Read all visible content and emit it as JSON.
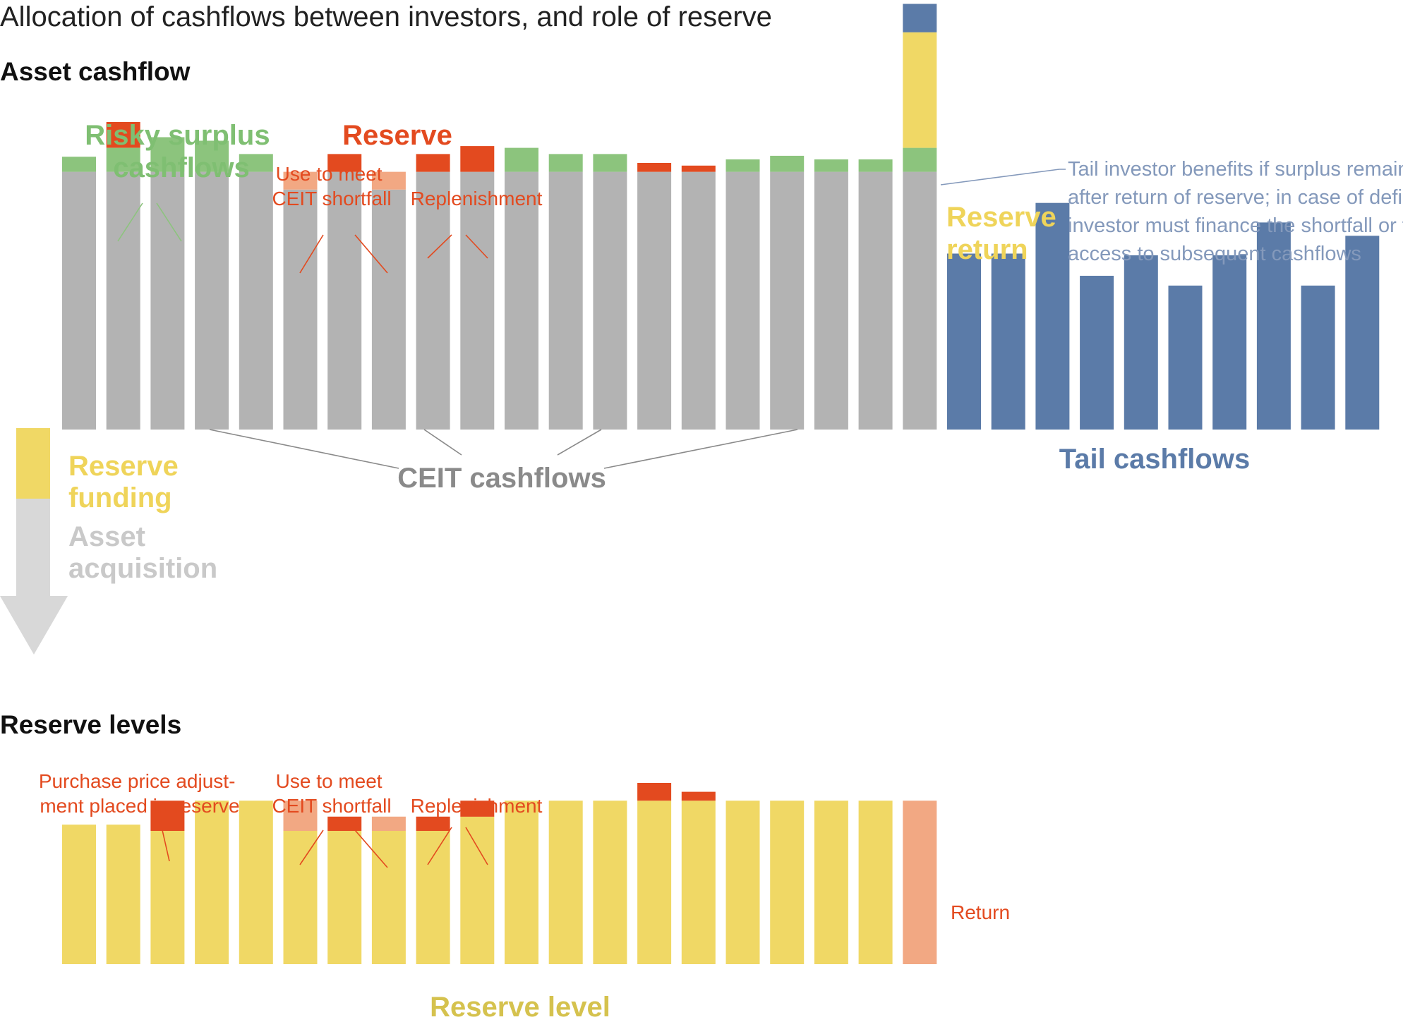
{
  "title": "Allocation of cashflows between investors, and role of reserve",
  "sections": {
    "asset_cashflow": "Asset cashflow",
    "reserve_levels": "Reserve levels"
  },
  "labels": {
    "risky_surplus": [
      "Risky surplus",
      "cashflows"
    ],
    "reserve": "Reserve",
    "use_to_meet_top": [
      "Use to meet",
      "CEIT shortfall"
    ],
    "replenishment_top": "Replenishment",
    "tail_note": [
      "Tail investor benefits if surplus remains",
      "after return of reserve; in case of deficit, tail",
      "investor must finance the shortfall or forfeit",
      "access to subsequent cashflows"
    ],
    "reserve_return": [
      "Reserve",
      "return"
    ],
    "ceit_cashflows": "CEIT cashflows",
    "tail_cashflows": "Tail cashflows",
    "reserve_funding": [
      "Reserve",
      "funding"
    ],
    "asset_acquisition": [
      "Asset",
      "acquisition"
    ],
    "purchase_price": [
      "Purchase price adjust-",
      "ment placed in reserve"
    ],
    "use_to_meet_bottom": [
      "Use to meet",
      "CEIT shortfall"
    ],
    "replenishment_bottom": "Replenishment",
    "return": "Return",
    "reserve_level": "Reserve level"
  },
  "colors": {
    "gray": "#b3b3b3",
    "green": "#8cc47d",
    "red": "#e34a1f",
    "salmon": "#f2a883",
    "yellow": "#f0d865",
    "blue": "#5b7ba8",
    "arrow_gray": "#d8d8d8",
    "label_green": "#7fbf72",
    "label_red": "#e34a1f",
    "label_gray": "#8a8a8a",
    "label_blue": "#5b7ba8",
    "note_blue": "#8499bb",
    "label_yellow": "#efd45a",
    "label_lightgray": "#c9c9c9",
    "label_olive": "#d5c24e"
  },
  "chart_data": [
    {
      "type": "bar",
      "title": "Asset cashflow",
      "series": [
        {
          "values": [
            29,
            29,
            29,
            29,
            29,
            27,
            29,
            27,
            29,
            29,
            29,
            29,
            29,
            29,
            29,
            29,
            29,
            29,
            29,
            29
          ]
        },
        {
          "values": [
            1.7,
            2.7,
            3.9,
            3.5,
            2.0,
            0,
            0,
            0,
            0,
            0,
            2.7,
            2.0,
            2.0,
            0,
            0,
            1.4,
            1.8,
            1.4,
            1.4,
            2.7
          ]
        },
        {
          "values": [
            0,
            2.9,
            0,
            0,
            0,
            0,
            2.0,
            0,
            2.0,
            2.9,
            0,
            0,
            0,
            1.0,
            0.7,
            0,
            0,
            0,
            0,
            0
          ]
        },
        {
          "values": [
            0,
            0,
            0,
            0,
            0,
            2.0,
            0,
            2.0,
            0,
            0,
            0,
            0,
            0,
            0,
            0,
            0,
            0,
            0,
            0,
            0
          ]
        },
        {
          "values": [
            0,
            0,
            0,
            0,
            0,
            0,
            0,
            0,
            0,
            0,
            0,
            0,
            0,
            0,
            0,
            0,
            0,
            0,
            0,
            13
          ]
        },
        {
          "values": [
            0,
            0,
            0,
            0,
            0,
            0,
            0,
            0,
            0,
            0,
            0,
            0,
            0,
            0,
            0,
            0,
            0,
            0,
            0,
            3.2
          ]
        }
      ],
      "tail_values": [
        19.8,
        19.8,
        25.5,
        17.3,
        19.6,
        16.2,
        19.6,
        23.3,
        16.2,
        21.8
      ]
    },
    {
      "type": "bar",
      "title": "Reserve levels",
      "series": [
        {
          "values": [
            15.7,
            15.7,
            15.0,
            18.4,
            18.4,
            15.0,
            15.0,
            15.0,
            15.0,
            16.6,
            18.4,
            18.4,
            18.4,
            18.4,
            18.4,
            18.4,
            18.4,
            18.4,
            18.4,
            0
          ]
        },
        {
          "values": [
            0,
            0,
            3.4,
            0,
            0,
            0,
            1.6,
            0,
            1.6,
            1.8,
            0,
            0,
            0,
            2.0,
            1.0,
            0,
            0,
            0,
            0,
            0
          ]
        },
        {
          "values": [
            0,
            0,
            0,
            0,
            0,
            3.4,
            0,
            1.6,
            0,
            0,
            0,
            0,
            0,
            0,
            0,
            0,
            0,
            0,
            0,
            18.4
          ]
        }
      ]
    }
  ]
}
